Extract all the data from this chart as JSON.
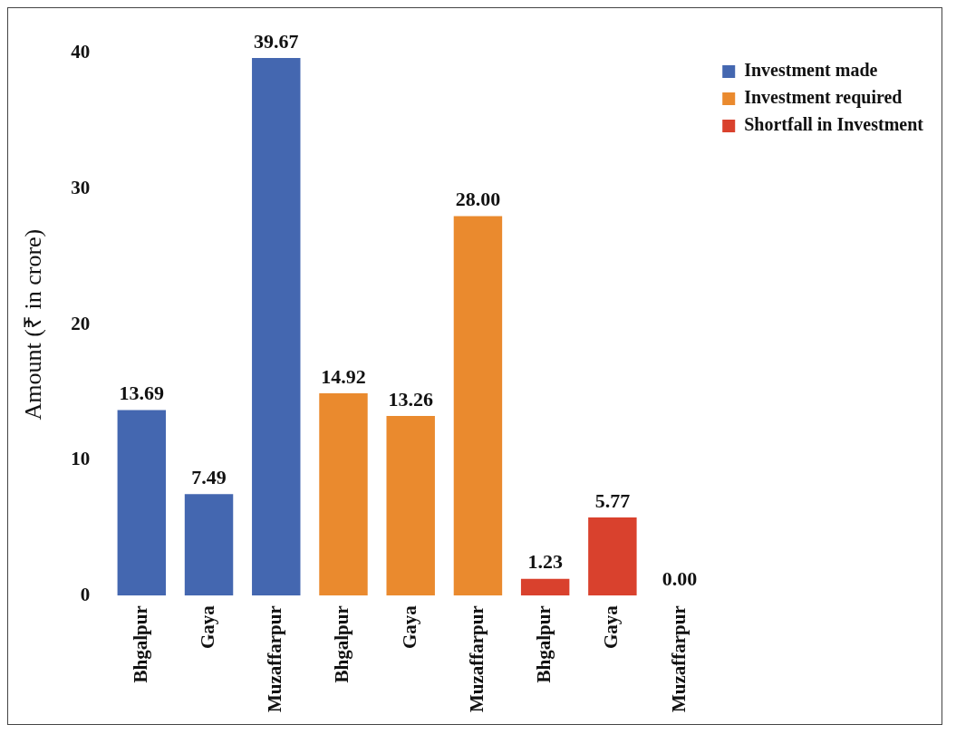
{
  "chart_data": {
    "type": "bar",
    "ylabel": "Amount (₹ in crore)",
    "categories": [
      "Bhgalpur",
      "Gaya",
      "Muzaffarpur",
      "Bhgalpur",
      "Gaya",
      "Muzaffarpur",
      "Bhgalpur",
      "Gaya",
      "Muzaffarpur"
    ],
    "series": [
      {
        "name": "Investment made",
        "color": "#4467b0",
        "values": [
          13.69,
          7.49,
          39.67,
          null,
          null,
          null,
          null,
          null,
          null
        ],
        "value_labels": [
          "13.69",
          "7.49",
          "39.67",
          null,
          null,
          null,
          null,
          null,
          null
        ]
      },
      {
        "name": "Investment required",
        "color": "#ea8a2e",
        "values": [
          null,
          null,
          null,
          14.92,
          13.26,
          28.0,
          null,
          null,
          null
        ],
        "value_labels": [
          null,
          null,
          null,
          "14.92",
          "13.26",
          "28.00",
          null,
          null,
          null
        ]
      },
      {
        "name": "Shortfall in Investment",
        "color": "#d9412d",
        "values": [
          null,
          null,
          null,
          null,
          null,
          null,
          1.23,
          5.77,
          0.0
        ],
        "value_labels": [
          null,
          null,
          null,
          null,
          null,
          null,
          "1.23",
          "5.77",
          "0.00"
        ]
      }
    ],
    "ylim": [
      0,
      40
    ],
    "yticks": [
      0,
      10,
      20,
      30,
      40
    ],
    "grid": false,
    "legend": "top right"
  }
}
